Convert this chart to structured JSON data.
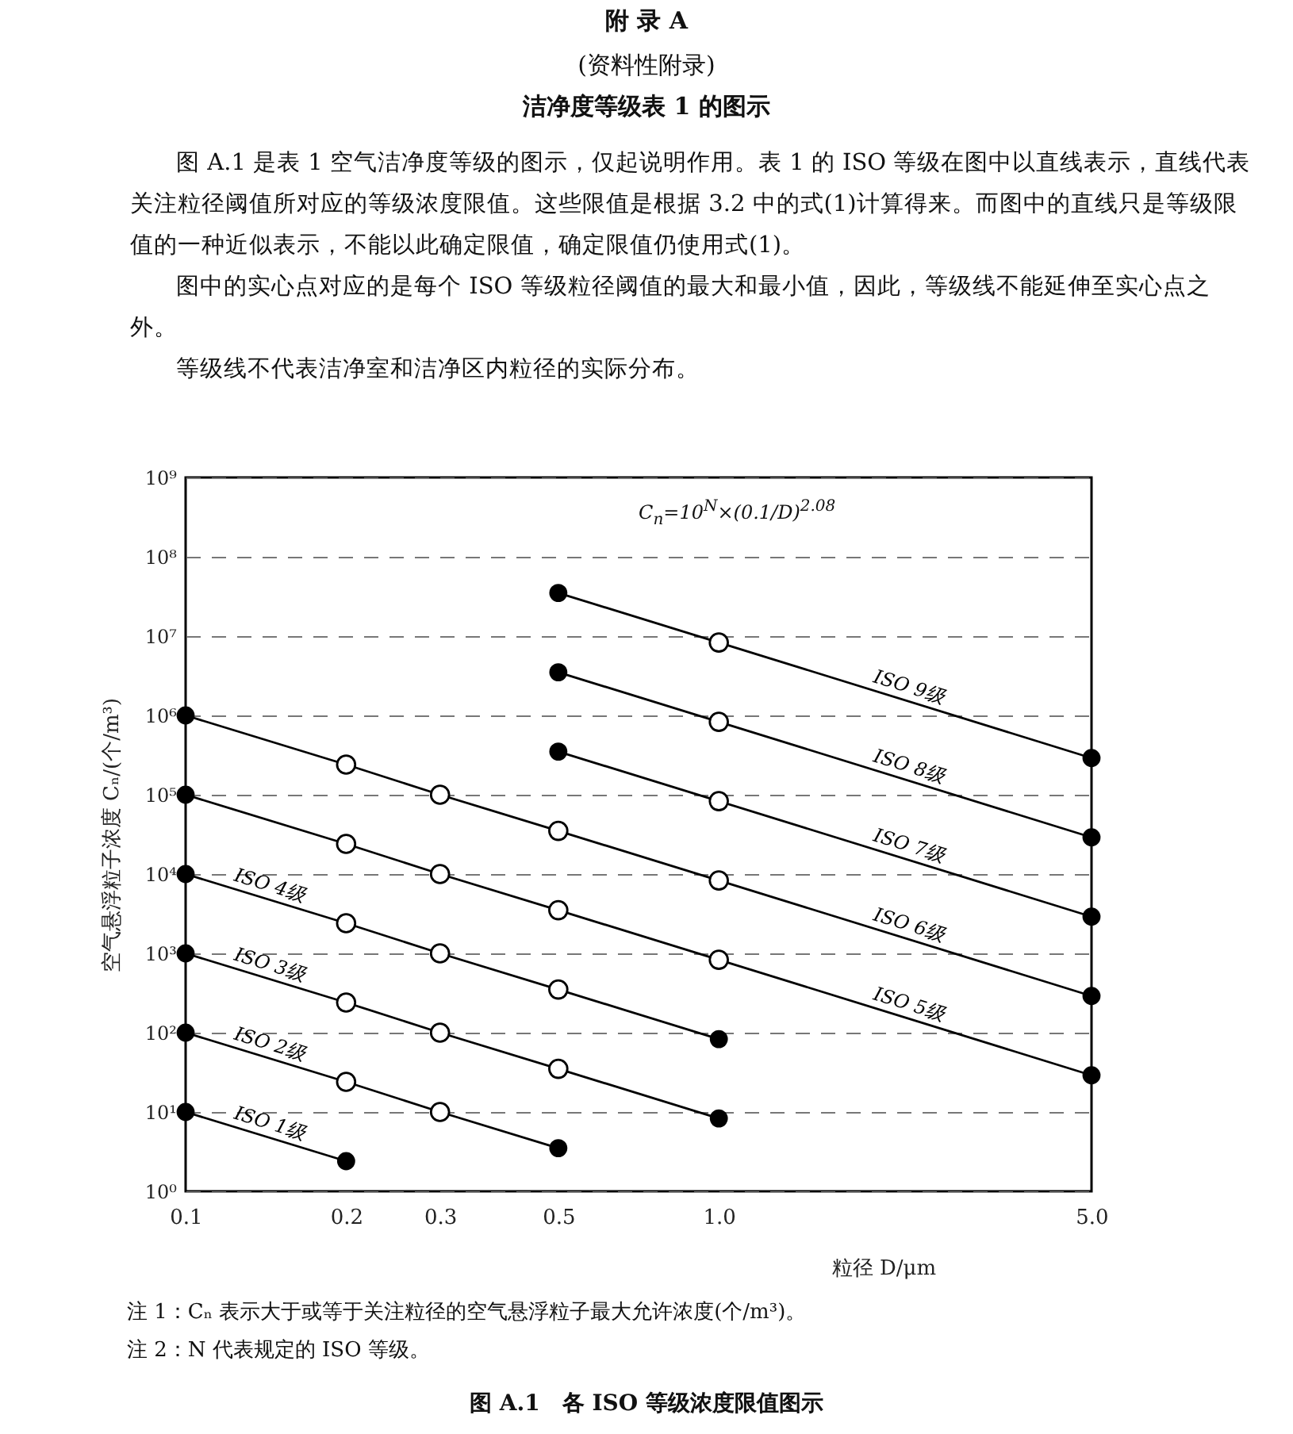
{
  "chart_data": {
    "type": "line",
    "title": "附 录 A",
    "subtitle": "(资料性附录)",
    "annotations": [
      "洁净度等级表 1 的图示",
      "图 A.1 是表 1 空气洁净度等级的图示，仅起说明作用。表 1 的 ISO 等级在图中以直线表示，直线代表关注粒径阈值所对应的等级浓度限值。这些限值是根据 3.2 中的式(1)计算得来。而图中的直线只是等级限值的一种近似表示，不能以此确定限值，确定限值仍使用式(1)。",
      "图中的实心点对应的是每个 ISO 等级粒径阈值的最大和最小值，因此，等级线不能延伸至实心点之外。",
      "等级线不代表洁净室和洁净区内粒径的实际分布。",
      "C$_{n}$=10$^{N}$×(0.1/D)$^{2.08}$",
      "注 1：Cₙ 表示大于或等于关注粒径的空气悬浮粒子最大允许浓度(个/m³)。",
      "注 2：N 代表规定的 ISO 等级。",
      "图 A.1　各 ISO 等级浓度限值图示"
    ],
    "xlabel": "粒径 D/μm",
    "ylabel": "空气悬浮粒子浓度 Cₙ/(个/m³)",
    "log": "xy",
    "grid": "y",
    "marker": "circle",
    "line_style": "solid",
    "xlim": [
      0.1,
      5
    ],
    "xticks": [
      0.1,
      0.2,
      0.3,
      0.5,
      {
        "value": 1,
        "label": "1.0"
      },
      {
        "value": 5,
        "label": "5.0"
      }
    ],
    "ylim": [
      1,
      1000000000
    ],
    "yticks": [
      {
        "value": 1,
        "label": "10⁰"
      },
      {
        "value": 10,
        "label": "10¹"
      },
      {
        "value": 100,
        "label": "10²"
      },
      {
        "value": 1000,
        "label": "10³"
      },
      {
        "value": 10000,
        "label": "10⁴"
      },
      {
        "value": 100000,
        "label": "10⁵"
      },
      {
        "value": 1000000,
        "label": "10⁶"
      },
      {
        "value": 10000000,
        "label": "10⁷"
      },
      {
        "value": 100000000,
        "label": "10⁸"
      },
      {
        "value": 1000000000,
        "label": "10⁹"
      }
    ],
    "series": [
      {
        "name": "ISO 1级",
        "color": "#000000",
        "x": [
          0.1,
          0.2
        ],
        "values": [
          10,
          2.4
        ]
      },
      {
        "name": "ISO 2级",
        "color": "#000000",
        "x": [
          0.1,
          0.2,
          0.3,
          0.5
        ],
        "values": [
          100,
          24,
          10,
          3.5
        ]
      },
      {
        "name": "ISO 3级",
        "color": "#000000",
        "x": [
          0.1,
          0.2,
          0.3,
          0.5,
          1
        ],
        "values": [
          1000,
          240,
          100,
          35,
          8.3
        ]
      },
      {
        "name": "ISO 4级",
        "color": "#000000",
        "x": [
          0.1,
          0.2,
          0.3,
          0.5,
          1
        ],
        "values": [
          10000,
          2400,
          1000,
          350,
          83
        ]
      },
      {
        "name": "ISO 5级",
        "color": "#000000",
        "x": [
          0.1,
          0.2,
          0.3,
          0.5,
          1,
          5
        ],
        "values": [
          100000,
          24000,
          10000,
          3500,
          830,
          29
        ]
      },
      {
        "name": "ISO 6级",
        "color": "#000000",
        "x": [
          0.1,
          0.2,
          0.3,
          0.5,
          1,
          5
        ],
        "values": [
          1000000,
          240000,
          100000,
          35000,
          8300,
          290
        ]
      },
      {
        "name": "ISO 7级",
        "color": "#000000",
        "x": [
          0.5,
          1,
          5
        ],
        "values": [
          350000,
          83000,
          2900
        ]
      },
      {
        "name": "ISO 8级",
        "color": "#000000",
        "x": [
          0.5,
          1,
          5
        ],
        "values": [
          3500000,
          830000,
          29000
        ]
      },
      {
        "name": "ISO 9级",
        "color": "#000000",
        "x": [
          0.5,
          1,
          5
        ],
        "values": [
          35000000,
          8300000,
          290000
        ]
      }
    ]
  }
}
